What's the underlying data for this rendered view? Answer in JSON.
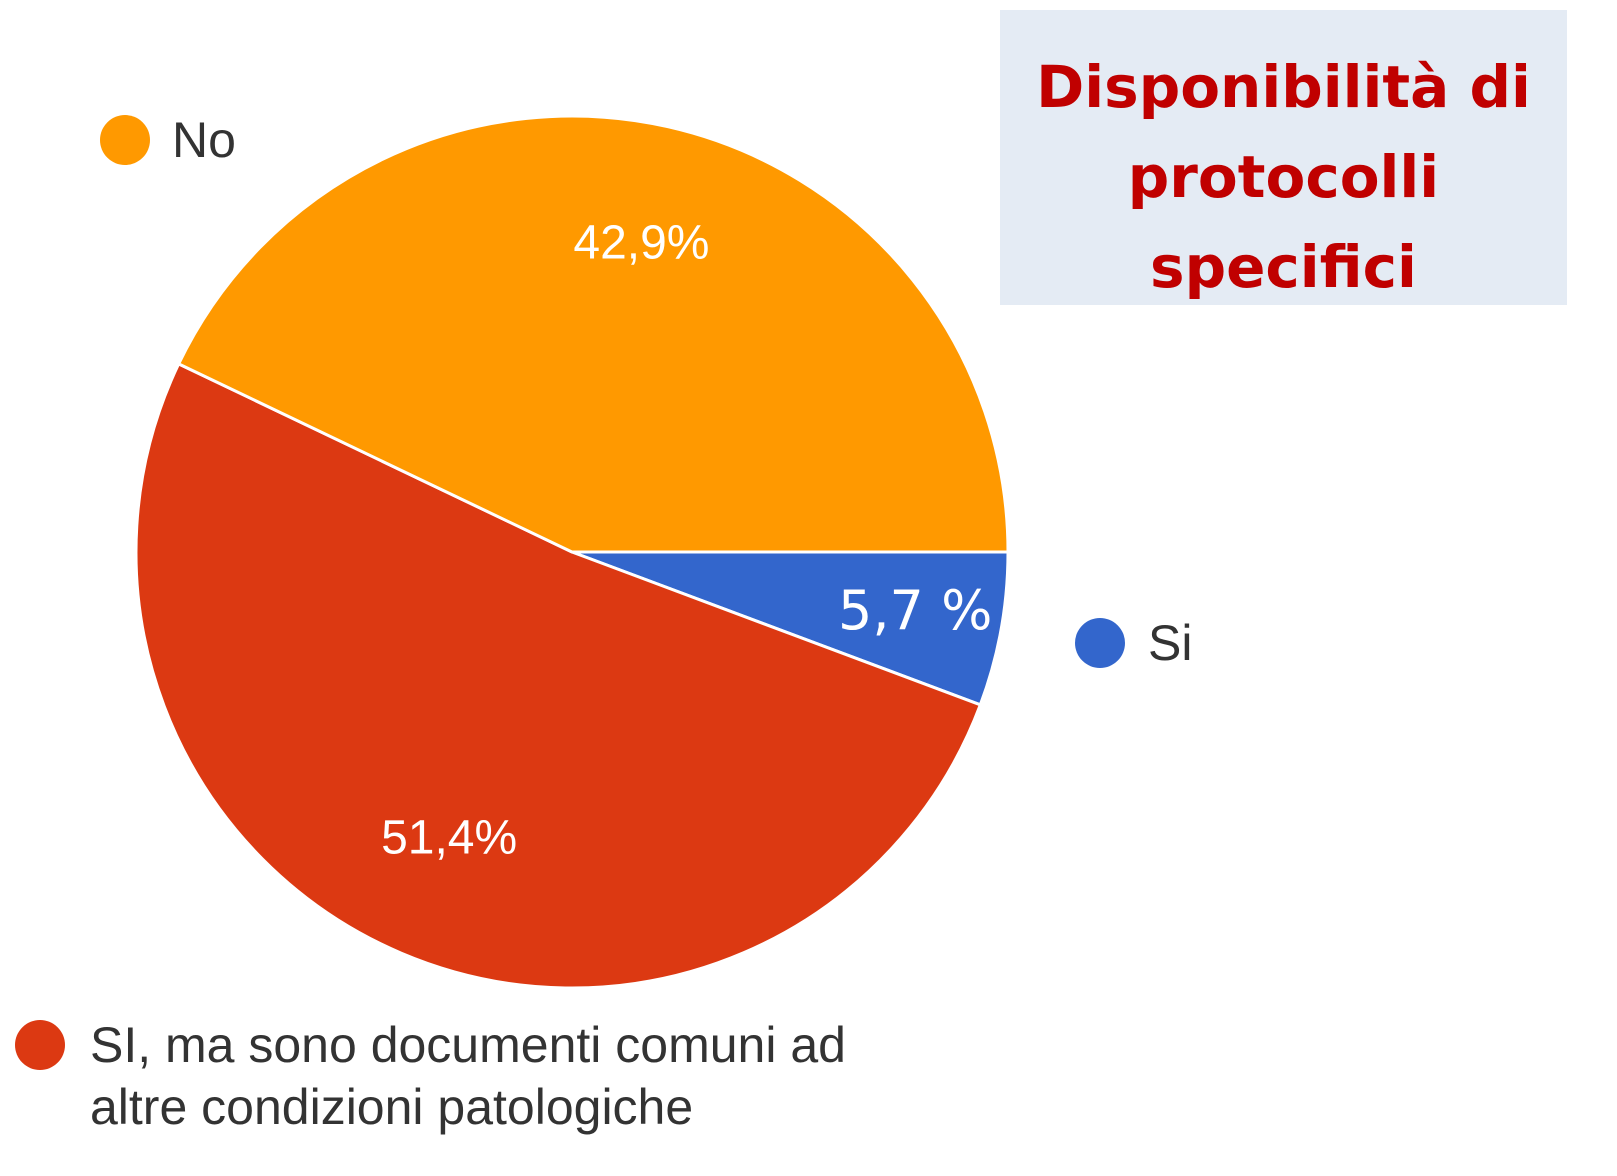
{
  "chart_data": {
    "type": "pie",
    "title": "Disponibilità di protocolli specifici",
    "categories": [
      "Si",
      "SI, ma sono documenti comuni ad altre condizioni patologiche",
      "No"
    ],
    "values": [
      5.7,
      51.4,
      42.9
    ],
    "value_labels": [
      "5,7 %",
      "51,4%",
      "42,9%"
    ],
    "colors": [
      "#3366cc",
      "#dc3912",
      "#ff9900"
    ]
  }
}
